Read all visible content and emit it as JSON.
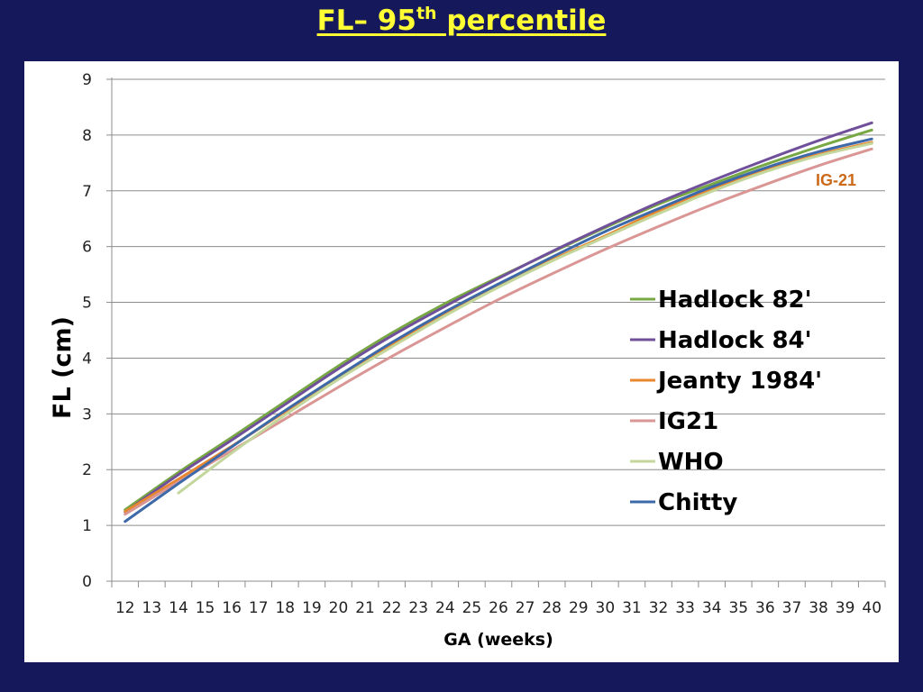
{
  "slide": {
    "title_main": "FL– 95",
    "title_sup": "th",
    "title_end": " percentile"
  },
  "colors": {
    "background": "#16185c",
    "title": "#ffff33",
    "grid": "#8c8c8c"
  },
  "chart_data": {
    "type": "line",
    "title": "FL– 95th percentile",
    "xlabel": "GA (weeks)",
    "ylabel": "FL (cm)",
    "xlim": [
      12,
      40
    ],
    "ylim": [
      0,
      9
    ],
    "x_ticks": [
      "12",
      "13",
      "14",
      "15",
      "16",
      "17",
      "18",
      "19",
      "20",
      "21",
      "22",
      "23",
      "24",
      "25",
      "26",
      "27",
      "28",
      "29",
      "30",
      "31",
      "32",
      "33",
      "34",
      "35",
      "36",
      "37",
      "38",
      "39",
      "40"
    ],
    "y_ticks": [
      "0",
      "1",
      "2",
      "3",
      "4",
      "5",
      "6",
      "7",
      "8",
      "9"
    ],
    "annotation": "IG-21",
    "legend_position": "center-right",
    "series": [
      {
        "name": "Hadlock 82'",
        "color": "#77a843",
        "x": [
          12,
          14,
          16,
          18,
          20,
          22,
          24,
          26,
          28,
          30,
          32,
          34,
          36,
          38,
          40
        ],
        "y": [
          1.28,
          1.95,
          2.58,
          3.22,
          3.86,
          4.45,
          4.98,
          5.45,
          5.9,
          6.34,
          6.76,
          7.12,
          7.47,
          7.79,
          8.09
        ]
      },
      {
        "name": "Hadlock 84'",
        "color": "#70509a",
        "x": [
          12,
          14,
          16,
          18,
          20,
          22,
          24,
          26,
          28,
          30,
          32,
          34,
          36,
          38,
          40
        ],
        "y": [
          1.24,
          1.91,
          2.53,
          3.17,
          3.81,
          4.4,
          4.93,
          5.43,
          5.91,
          6.36,
          6.79,
          7.18,
          7.55,
          7.9,
          8.22
        ]
      },
      {
        "name": "Jeanty 1984'",
        "color": "#e8872e",
        "x": [
          12,
          14,
          16,
          18,
          20,
          22,
          24,
          26,
          28,
          30,
          32,
          34,
          36,
          38,
          40
        ],
        "y": [
          1.25,
          1.83,
          2.42,
          3.04,
          3.65,
          4.23,
          4.78,
          5.29,
          5.76,
          6.19,
          6.64,
          7.04,
          7.39,
          7.65,
          7.87
        ]
      },
      {
        "name": "IG21",
        "color": "#d99694",
        "x": [
          12,
          14,
          16,
          18,
          20,
          22,
          24,
          26,
          28,
          30,
          32,
          34,
          36,
          38,
          40
        ],
        "y": [
          1.2,
          1.78,
          2.34,
          2.91,
          3.48,
          4.03,
          4.55,
          5.05,
          5.51,
          5.95,
          6.36,
          6.75,
          7.11,
          7.45,
          7.75
        ]
      },
      {
        "name": "WHO",
        "color": "#c3d69b",
        "x": [
          14,
          16,
          18,
          20,
          22,
          24,
          26,
          28,
          30,
          32,
          34,
          36,
          38,
          40
        ],
        "y": [
          1.58,
          2.3,
          2.98,
          3.62,
          4.2,
          4.76,
          5.27,
          5.74,
          6.17,
          6.59,
          6.99,
          7.34,
          7.63,
          7.85
        ]
      },
      {
        "name": "Chitty",
        "color": "#3d69a8",
        "x": [
          12,
          14,
          16,
          18,
          20,
          22,
          24,
          26,
          28,
          30,
          32,
          34,
          36,
          38,
          40
        ],
        "y": [
          1.07,
          1.75,
          2.41,
          3.06,
          3.68,
          4.28,
          4.83,
          5.33,
          5.81,
          6.27,
          6.68,
          7.07,
          7.41,
          7.7,
          7.93
        ]
      }
    ]
  }
}
